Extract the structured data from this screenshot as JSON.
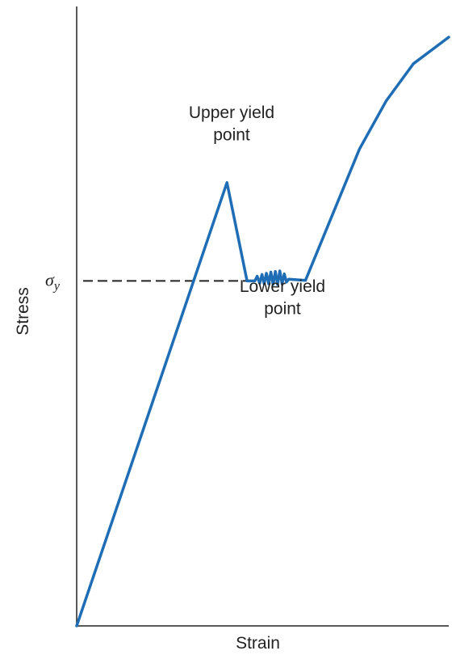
{
  "chart_data": {
    "type": "line",
    "xlabel": "Strain",
    "ylabel": "Stress",
    "xlim": [
      0,
      100
    ],
    "ylim": [
      0,
      100
    ],
    "grid": false,
    "ticks": "none",
    "series": [
      {
        "color": "#1f6db5",
        "points": [
          [
            0,
            0
          ],
          [
            40.4,
            75.3
          ],
          [
            45.8,
            58.6
          ],
          [
            47.9,
            58.6
          ],
          [
            48.5,
            59.4
          ],
          [
            49.2,
            58.2
          ],
          [
            49.8,
            59.7
          ],
          [
            50.4,
            58.1
          ],
          [
            51.0,
            59.9
          ],
          [
            51.6,
            58.1
          ],
          [
            52.2,
            60.1
          ],
          [
            52.8,
            58.0
          ],
          [
            53.4,
            60.2
          ],
          [
            54.0,
            58.0
          ],
          [
            54.6,
            60.3
          ],
          [
            55.2,
            58.1
          ],
          [
            55.8,
            59.8
          ],
          [
            56.4,
            58.4
          ],
          [
            57.0,
            58.9
          ],
          [
            61.5,
            58.7
          ],
          [
            69.5,
            71.0
          ],
          [
            76.0,
            81.0
          ],
          [
            83.2,
            89.2
          ],
          [
            90.5,
            95.5
          ],
          [
            100,
            100
          ]
        ]
      }
    ],
    "reference_lines": [
      {
        "axis": "y",
        "value": 58.6,
        "label": "σy",
        "style": "dashed"
      }
    ],
    "annotations": [
      {
        "text_lines": [
          "Upper yield",
          "point"
        ],
        "anchor": [
          40.4,
          75.3
        ]
      },
      {
        "text_lines": [
          "Lower yield",
          "point"
        ],
        "anchor": [
          57.0,
          58.6
        ]
      }
    ]
  }
}
